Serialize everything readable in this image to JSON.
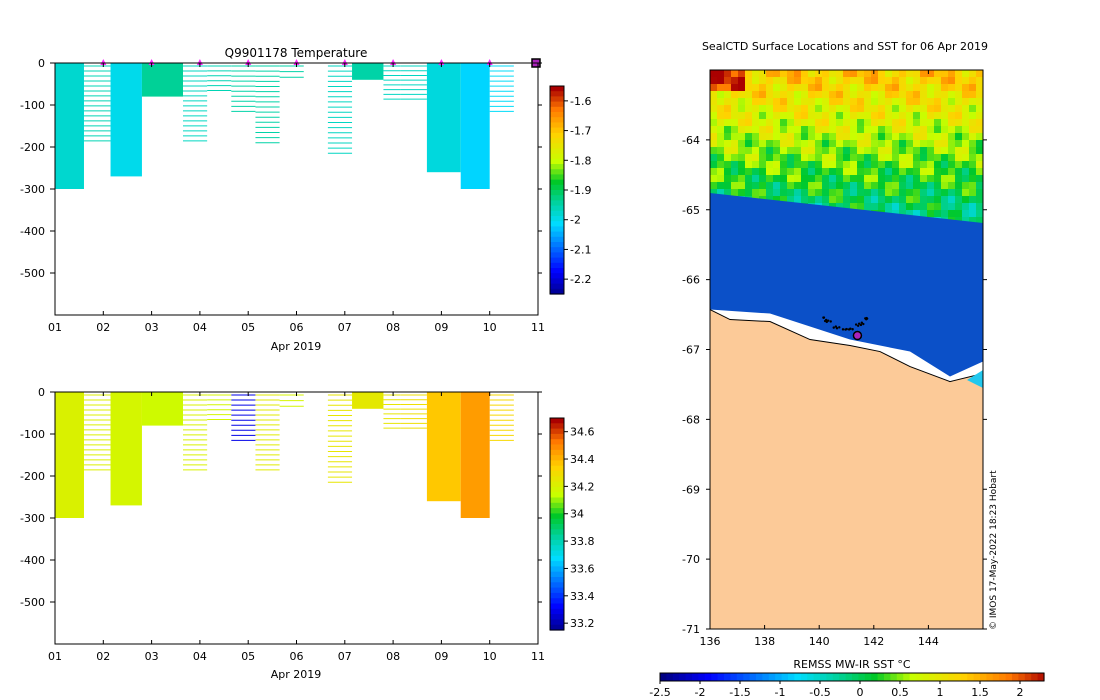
{
  "chart_data": [
    {
      "type": "heatmap",
      "id": "temperature",
      "title": "Q9901178  Temperature",
      "xlabel": "Apr 2019",
      "ylabel": "",
      "x_ticks": [
        "01",
        "02",
        "03",
        "04",
        "05",
        "06",
        "07",
        "08",
        "09",
        "10",
        "11"
      ],
      "xlim": [
        1,
        11
      ],
      "y_ticks": [
        0,
        -100,
        -200,
        -300,
        -400,
        -500
      ],
      "ylim": [
        -600,
        0
      ],
      "colorbar": {
        "ticks": [
          -1.6,
          -1.7,
          -1.8,
          -1.9,
          -2,
          -2.1,
          -2.2
        ],
        "range": [
          -2.25,
          -1.55
        ]
      },
      "surface_markers": [
        2,
        3,
        4,
        5,
        6,
        7,
        8,
        9,
        10
      ],
      "end_marker": 11,
      "profiles": [
        {
          "x0": 1.0,
          "x1": 1.6,
          "depth": 300,
          "value": -1.97
        },
        {
          "x0": 1.6,
          "x1": 2.15,
          "depth": 190,
          "value": -1.95
        },
        {
          "x0": 2.15,
          "x1": 2.8,
          "depth": 270,
          "value": -1.99
        },
        {
          "x0": 2.8,
          "x1": 3.65,
          "depth": 80,
          "value": -1.93
        },
        {
          "x0": 3.65,
          "x1": 4.15,
          "depth": 190,
          "value": -1.96
        },
        {
          "x0": 4.15,
          "x1": 4.65,
          "depth": 70,
          "value": -1.95
        },
        {
          "x0": 4.65,
          "x1": 5.15,
          "depth": 120,
          "value": -1.94
        },
        {
          "x0": 5.15,
          "x1": 5.65,
          "depth": 195,
          "value": -1.94
        },
        {
          "x0": 5.65,
          "x1": 6.15,
          "depth": 40,
          "value": -1.94
        },
        {
          "x0": 6.65,
          "x1": 7.15,
          "depth": 220,
          "value": -1.96
        },
        {
          "x0": 7.15,
          "x1": 7.8,
          "depth": 40,
          "value": -1.94
        },
        {
          "x0": 7.8,
          "x1": 8.15,
          "depth": 90,
          "value": -1.96
        },
        {
          "x0": 8.15,
          "x1": 8.7,
          "depth": 90,
          "value": -1.96
        },
        {
          "x0": 8.7,
          "x1": 9.4,
          "depth": 260,
          "value": -1.98
        },
        {
          "x0": 9.4,
          "x1": 10.0,
          "depth": 300,
          "value": -2.01
        },
        {
          "x0": 10.0,
          "x1": 10.5,
          "depth": 120,
          "value": -2.0
        }
      ]
    },
    {
      "type": "heatmap",
      "id": "salinity",
      "title": "",
      "xlabel": "Apr 2019",
      "ylabel": "",
      "x_ticks": [
        "01",
        "02",
        "03",
        "04",
        "05",
        "06",
        "07",
        "08",
        "09",
        "10",
        "11"
      ],
      "xlim": [
        1,
        11
      ],
      "y_ticks": [
        0,
        -100,
        -200,
        -300,
        -400,
        -500
      ],
      "ylim": [
        -600,
        0
      ],
      "colorbar": {
        "ticks": [
          34.6,
          34.4,
          34.2,
          34,
          33.8,
          33.6,
          33.4,
          33.2
        ],
        "range": [
          33.15,
          34.7
        ]
      },
      "profiles": [
        {
          "x0": 1.0,
          "x1": 1.6,
          "depth": 300,
          "value": 34.22
        },
        {
          "x0": 1.6,
          "x1": 2.15,
          "depth": 190,
          "value": 34.23
        },
        {
          "x0": 2.15,
          "x1": 2.8,
          "depth": 270,
          "value": 34.2
        },
        {
          "x0": 2.8,
          "x1": 3.65,
          "depth": 80,
          "value": 34.18
        },
        {
          "x0": 3.65,
          "x1": 4.15,
          "depth": 190,
          "value": 34.22
        },
        {
          "x0": 4.15,
          "x1": 4.65,
          "depth": 70,
          "value": 34.2
        },
        {
          "x0": 4.65,
          "x1": 5.15,
          "depth": 120,
          "value": 33.3
        },
        {
          "x0": 5.15,
          "x1": 5.65,
          "depth": 190,
          "value": 34.25
        },
        {
          "x0": 5.65,
          "x1": 6.15,
          "depth": 40,
          "value": 34.2
        },
        {
          "x0": 6.65,
          "x1": 7.15,
          "depth": 220,
          "value": 34.27
        },
        {
          "x0": 7.15,
          "x1": 7.8,
          "depth": 40,
          "value": 34.26
        },
        {
          "x0": 7.8,
          "x1": 8.15,
          "depth": 90,
          "value": 34.27
        },
        {
          "x0": 8.15,
          "x1": 8.7,
          "depth": 90,
          "value": 34.3
        },
        {
          "x0": 8.7,
          "x1": 9.4,
          "depth": 260,
          "value": 34.38
        },
        {
          "x0": 9.4,
          "x1": 10.0,
          "depth": 300,
          "value": 34.47
        },
        {
          "x0": 10.0,
          "x1": 10.5,
          "depth": 120,
          "value": 34.33
        }
      ]
    },
    {
      "type": "heatmap",
      "id": "sst_map",
      "title": "SealCTD Surface Locations and SST for 06 Apr 2019",
      "xlabel": "",
      "ylabel": "",
      "x_ticks": [
        136,
        138,
        140,
        142,
        144
      ],
      "xlim": [
        136,
        146
      ],
      "y_ticks": [
        -64,
        -65,
        -66,
        -67,
        -68,
        -69,
        -70,
        -71
      ],
      "ylim": [
        -71,
        -63
      ],
      "colorbar_label": "REMSS MW-IR SST °C",
      "colorbar": {
        "ticks": [
          "-2.5",
          "-2",
          "-1.5",
          "-1",
          "-0.5",
          "0",
          "0.5",
          "1",
          "1.5",
          "2"
        ],
        "range": [
          -2.5,
          2.3
        ]
      },
      "coastline_lat_approx": -66.6,
      "seal_location": {
        "lon": 141.4,
        "lat": -66.8
      },
      "credit": "© IMOS 17-May-2022 18:23 Hobart"
    }
  ],
  "colors": {
    "land": "#fcca98",
    "ice_cold": "#0b50c8",
    "marker": "#ff22ff",
    "seal": "#aa22bb"
  }
}
